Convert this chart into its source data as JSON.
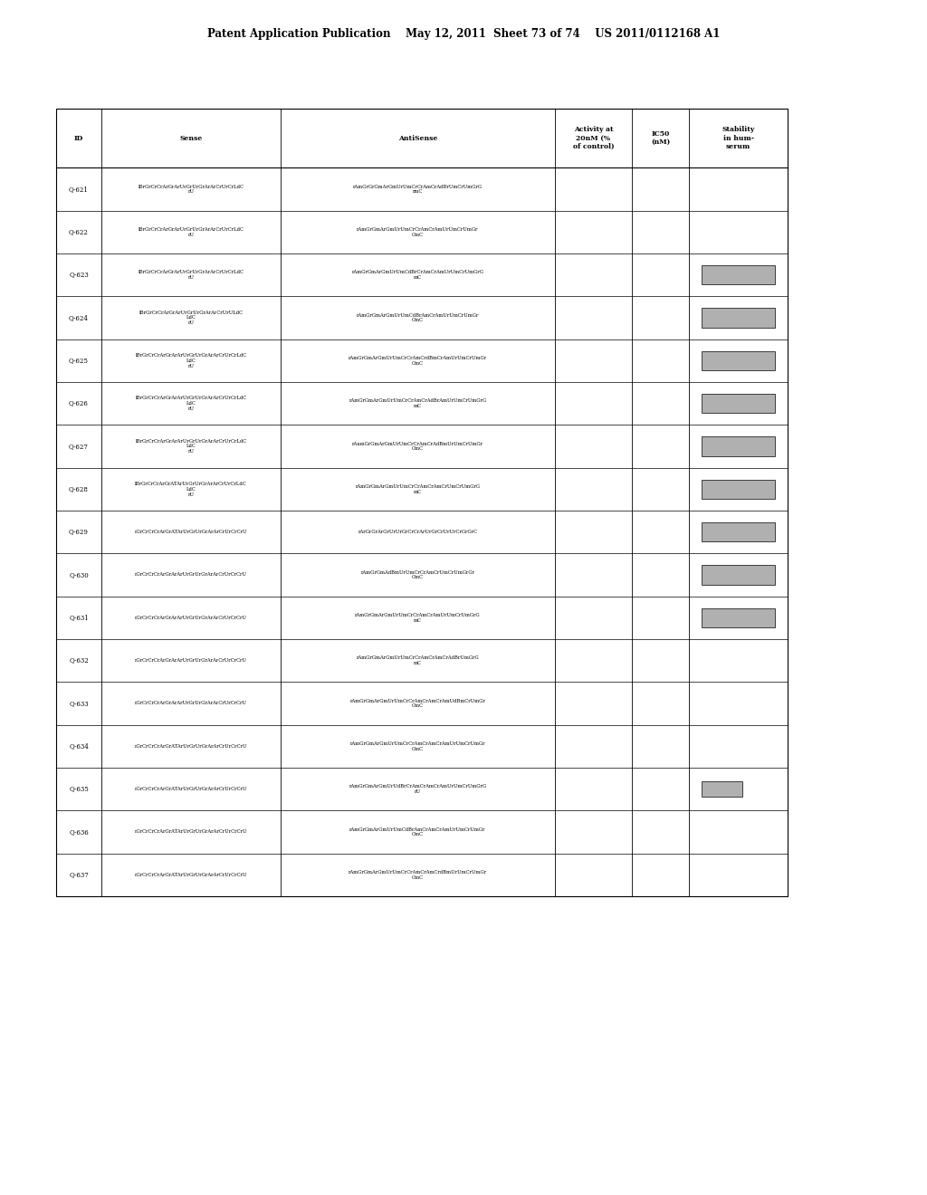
{
  "header_text": "Patent Application Publication    May 12, 2011  Sheet 73 of 74    US 2011/0112168 A1",
  "col_headers": [
    "ID",
    "Sense",
    "AntiSense",
    "Activity at\n20nM (%\nof control)",
    "IC50\n(nM)",
    "Stability\nin hum-\nserum"
  ],
  "rows": [
    [
      "Q-621",
      "lBrGrCrCrArGrArUrGrUrGrArArCrUrCrLdC\nrU",
      "rAmGrGrGmArGmUrUmCrCrAmCrAdBrUmCrUmGrG\nrmC",
      "",
      "",
      ""
    ],
    [
      "Q-622",
      "lBrGrCrCrArGrArUrGrUrGrArArCrUrCrLdC\nrU",
      "rAmGrGmArGmUrUmCrCrAmCrAmUrUmCrUmGr\nGmC",
      "",
      "",
      ""
    ],
    [
      "Q-623",
      "lBrGrCrCrArGrArUrGrUrGrArArCrUrCrLdC\nrU",
      "rAmGrGmArGmUrUmCdBrCrAmCrAmUrUmCrUmGrG\nmC",
      "",
      "",
      ""
    ],
    [
      "Q-624",
      "lBrGrCrCrArGrArUrGrUrGrArArCrUrULdC\nLdC\nrU",
      "rAmGrGmArGmUrUmCdBrAmCrAmUrUmCrUmGr\nGmC",
      "",
      "",
      ""
    ],
    [
      "Q-625",
      "lBrGrCrCrArGrArArUrGrUrGrArArCrUrCrLdC\nLdC\nrU",
      "rAmGrGmArGmUrUmCrCrAmCrdBmCrAmUrUmCrUmGr\nGmC",
      "",
      "",
      ""
    ],
    [
      "Q-626",
      "lBrGrCrCrArGrArArUrGrUrGrArArCrUrCrLdC\nLdC\nrU",
      "rAmGrGmArGmUrUmCrCrAmCrAdBrAmUrUmCrUmGrG\nmC",
      "",
      "",
      ""
    ],
    [
      "Q-627",
      "lBrGrCrCrArGrArArUrGrUrGrArArCrUrCrLdC\nLdC\nrU",
      "rAumGrGmArGmUrUmCrCrAmCrAdBmUrUmCrUmGr\nGmC",
      "",
      "",
      ""
    ],
    [
      "Q-628",
      "lBrGrCrCrArGrATArUrGrUrGrArArCrUrCrLdC\nLdC\nrU",
      "rAmGrGmArGmUrUmCrCrAmCrAmCrUmCrUmGrG\nmC",
      "",
      "",
      ""
    ],
    [
      "Q-629",
      "rGrCrCrCrArGrATArUrGrUrGrArArCrUrCrCrU",
      "rArGrGrArGrUrUrGrCrCrArUrGrCrUrUrCrGrGrC",
      "",
      "",
      ""
    ],
    [
      "Q-630",
      "rGrCrCrCrArGrArArUrGrUrGrArArCrUrCrCrU",
      "rAmGrGmAdBmUrUmCrCrAmCrUmCrUmGrGr\nGmC",
      "",
      "",
      ""
    ],
    [
      "Q-631",
      "rGrCrCrCrArGrArArUrGrUrGrArArCrUrCrCrU",
      "rAmGrGmArGmUrUmCrCrAmCrAmUrUmCrUmGrG\nmC",
      "",
      "",
      ""
    ],
    [
      "Q-632",
      "rGrCrCrCrArGrArArUrGrUrGrArArCrUrCrCrU",
      "rAmGrGmArGmUrUmCrCrAmCrAmCrAdBrUmGrG\nmC",
      "",
      "",
      ""
    ],
    [
      "Q-633",
      "rGrCrCrCrArGrArArUrGrUrGrArArCrUrCrCrU",
      "rAmGrGmArGmUrUmCrCrAmCrAmCrAmUdBmCrUmGr\nGmC",
      "",
      "",
      ""
    ],
    [
      "Q-634",
      "rGrCrCrCrArGrATArUrGrUrGrArArCrUrCrCrU",
      "rAmGrGmArGmUrUmCrCrAmCrAmCrAmUrUmCrUmGr\nGmC",
      "",
      "",
      ""
    ],
    [
      "Q-635",
      "rGrCrCrCrArGrATArUrGrUrGrArArCrUrCrCrU",
      "rAmGrGmArGmUrUdBrCrAmCrAmCrAmUrUmCrUmGrG\nrU",
      "",
      "",
      ""
    ],
    [
      "Q-636",
      "rGrCrCrCrArGrATArUrGrUrGrArArCrUrCrCrU",
      "rAmGrGmArGmUrUmCdBrAmCrAmCrAmUrUmCrUmGr\nGmC",
      "",
      "",
      ""
    ],
    [
      "Q-637",
      "rGrCrCrCrArGrATArUrGrUrGrArArCrUrCrCrU",
      "rAmGrGmArGmUrUmCrCrAmCrAmCrdBmUrUmCrUmGr\nGmC",
      "",
      "",
      ""
    ]
  ],
  "stability_filled_rows": [
    2,
    3,
    4,
    5,
    6,
    7,
    8,
    9,
    10
  ],
  "stability_partial_rows": [
    14
  ],
  "bg_color": "#ffffff",
  "text_color": "#000000",
  "line_color": "#000000"
}
